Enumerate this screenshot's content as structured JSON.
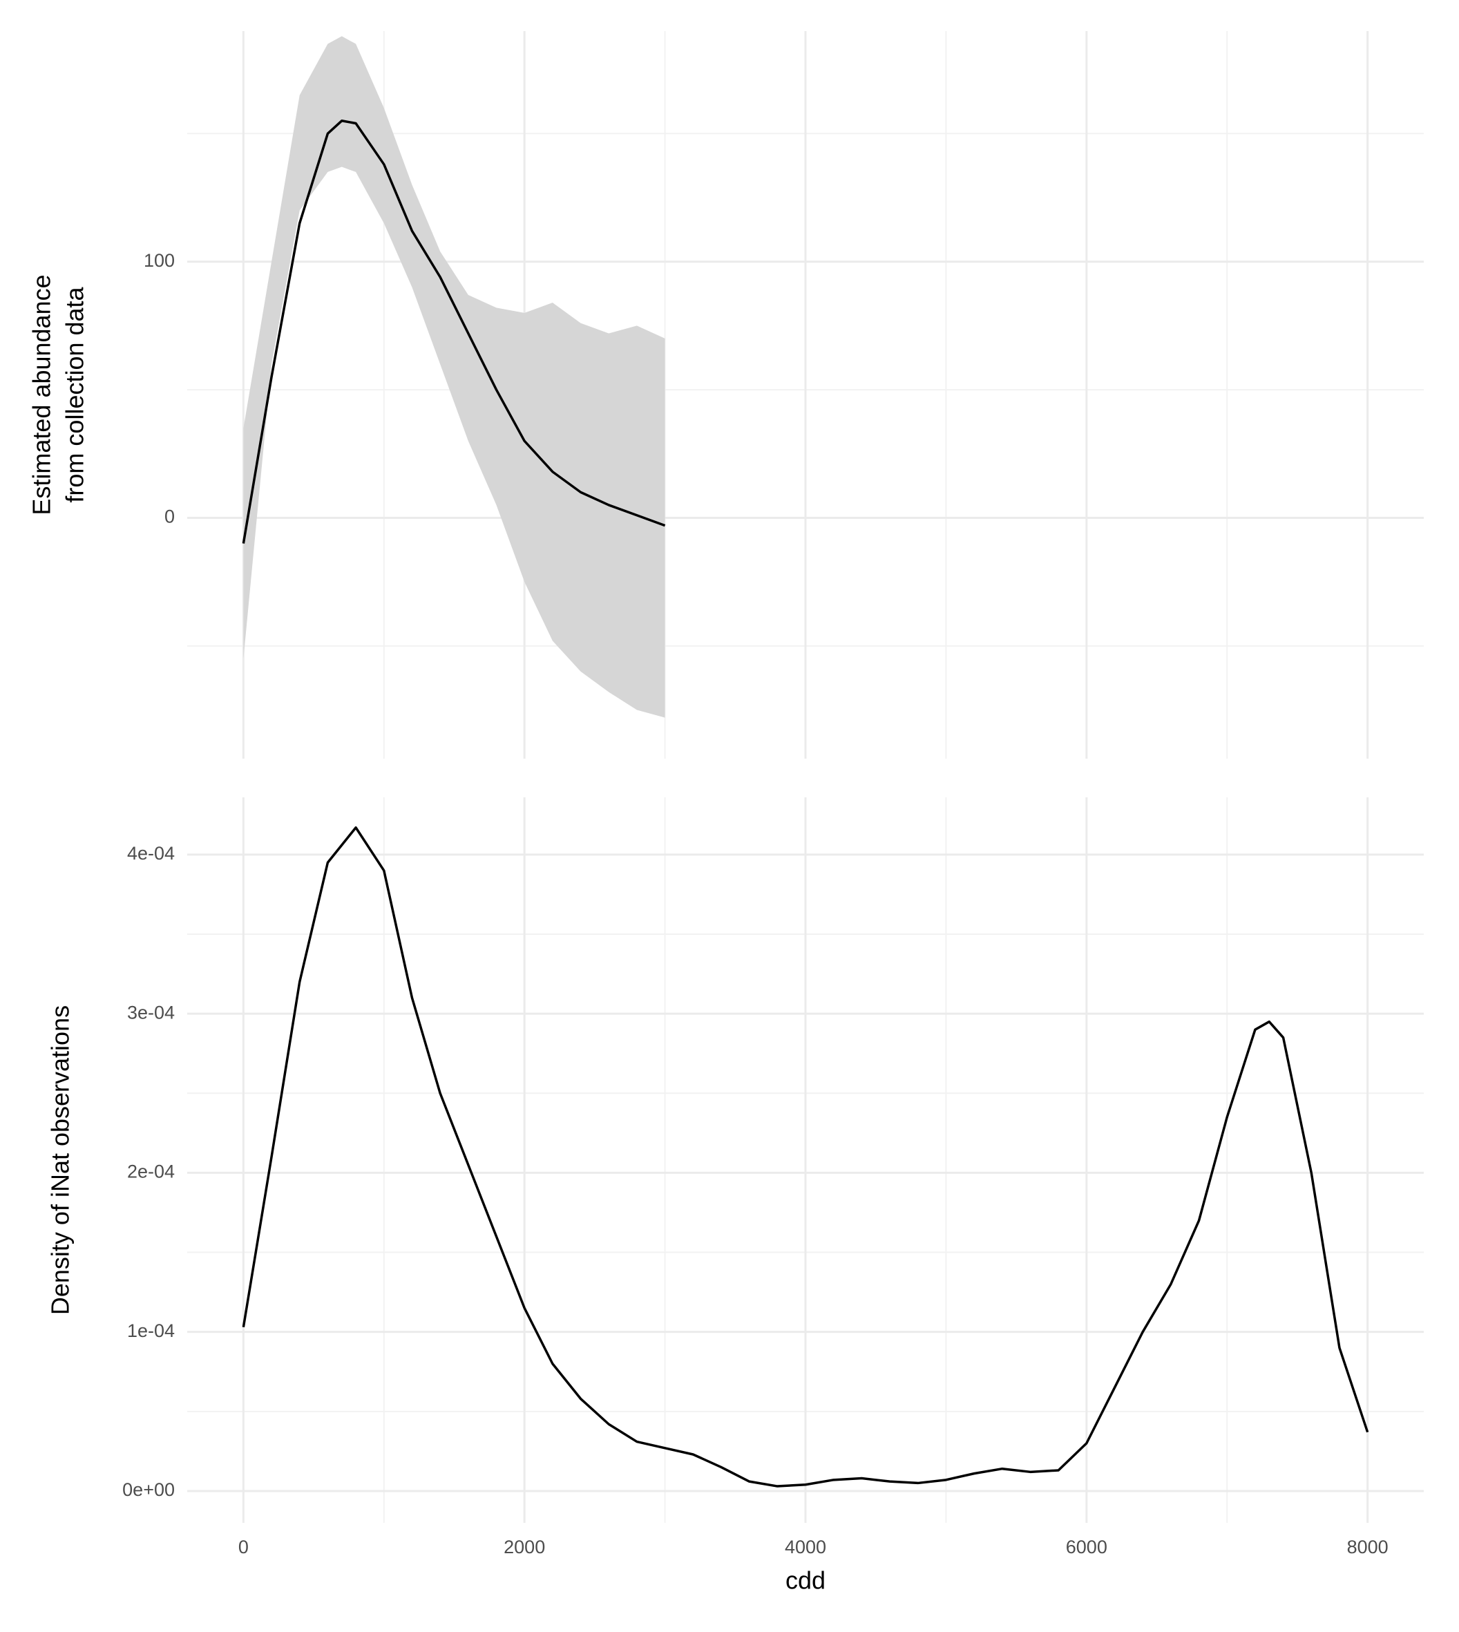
{
  "chart_data": [
    {
      "type": "ribbon-line",
      "ylabel": [
        "Estimated abundance",
        "from collection data"
      ],
      "x": [
        0,
        200,
        400,
        600,
        700,
        800,
        1000,
        1200,
        1400,
        1600,
        1800,
        2000,
        2200,
        2400,
        2600,
        2800,
        3000
      ],
      "values": [
        -10,
        55,
        115,
        150,
        155,
        154,
        138,
        112,
        94,
        72,
        50,
        30,
        18,
        10,
        5,
        1,
        -3
      ],
      "upper": [
        35,
        100,
        165,
        185,
        188,
        185,
        160,
        130,
        104,
        87,
        82,
        80,
        84,
        76,
        72,
        75,
        70
      ],
      "lower": [
        -55,
        60,
        120,
        135,
        137,
        135,
        115,
        90,
        60,
        30,
        5,
        -25,
        -48,
        -60,
        -68,
        -75,
        -78
      ],
      "color": "#000000",
      "ribbon_color": "#d6d6d6",
      "xlim": [
        -400,
        8400
      ],
      "ylim": [
        -94,
        190
      ],
      "xticks": [
        0,
        2000,
        4000,
        6000,
        8000
      ],
      "yticks": [
        0,
        100
      ],
      "grid": true
    },
    {
      "type": "line",
      "ylabel": "Density of iNat observations",
      "xlabel": "cdd",
      "x": [
        0,
        200,
        400,
        600,
        800,
        1000,
        1200,
        1400,
        1600,
        1800,
        2000,
        2200,
        2400,
        2600,
        2800,
        3000,
        3200,
        3400,
        3600,
        3800,
        4000,
        4200,
        4400,
        4600,
        4800,
        5000,
        5200,
        5400,
        5600,
        5800,
        6000,
        6200,
        6400,
        6600,
        6800,
        7000,
        7200,
        7300,
        7400,
        7600,
        7800,
        8000
      ],
      "values": [
        0.000103,
        0.00021,
        0.00032,
        0.000395,
        0.000417,
        0.00039,
        0.00031,
        0.00025,
        0.000205,
        0.00016,
        0.000115,
        8e-05,
        5.8e-05,
        4.2e-05,
        3.1e-05,
        2.7e-05,
        2.3e-05,
        1.5e-05,
        6e-06,
        3e-06,
        4e-06,
        7e-06,
        8e-06,
        6e-06,
        5e-06,
        7e-06,
        1.1e-05,
        1.4e-05,
        1.2e-05,
        1.3e-05,
        3e-05,
        6.5e-05,
        0.0001,
        0.00013,
        0.00017,
        0.000235,
        0.00029,
        0.000295,
        0.000285,
        0.0002,
        9e-05,
        3.7e-05
      ],
      "color": "#000000",
      "xlim": [
        -400,
        8400
      ],
      "ylim": [
        -2e-05,
        0.000436
      ],
      "xticks": [
        0,
        2000,
        4000,
        6000,
        8000
      ],
      "yticks": [
        {
          "value": 0,
          "label": "0e+00"
        },
        {
          "value": 0.0001,
          "label": "1e-04"
        },
        {
          "value": 0.0002,
          "label": "2e-04"
        },
        {
          "value": 0.0003,
          "label": "3e-04"
        },
        {
          "value": 0.0004,
          "label": "4e-04"
        }
      ],
      "grid": true
    }
  ]
}
